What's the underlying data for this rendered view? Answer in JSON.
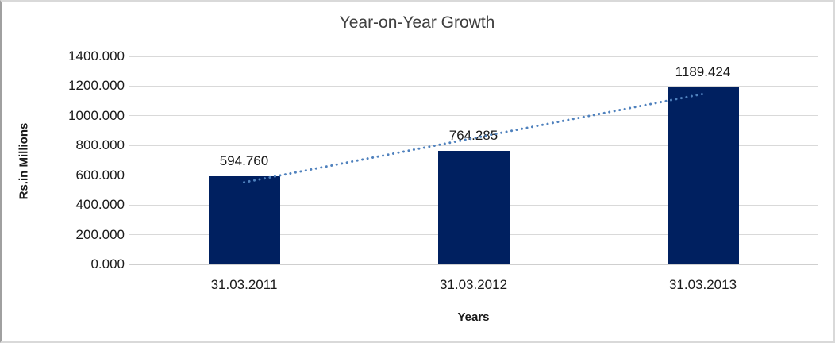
{
  "chart_data": {
    "type": "bar",
    "title": "Year-on-Year Growth",
    "xlabel": "Years",
    "ylabel": "Rs.in Millions",
    "categories": [
      "31.03.2011",
      "31.03.2012",
      "31.03.2013"
    ],
    "values": [
      594.76,
      764.285,
      1189.424
    ],
    "data_labels": [
      "594.760",
      "764.285",
      "1189.424"
    ],
    "ylim": [
      0,
      1400
    ],
    "ytick_step": 200,
    "ytick_labels": [
      "0.000",
      "200.000",
      "400.000",
      "600.000",
      "800.000",
      "1000.000",
      "1200.000",
      "1400.000"
    ],
    "grid": true,
    "legend": "none",
    "trendline": {
      "type": "linear",
      "style": "dotted"
    },
    "colors": {
      "bar": "#002060",
      "trendline": "#4f81bd",
      "gridline": "#d9d9d9",
      "axis_line": "#cfcfcf",
      "text": "#1a1a1a",
      "title_text": "#404040",
      "frame_border": "#d9d9d9"
    }
  }
}
